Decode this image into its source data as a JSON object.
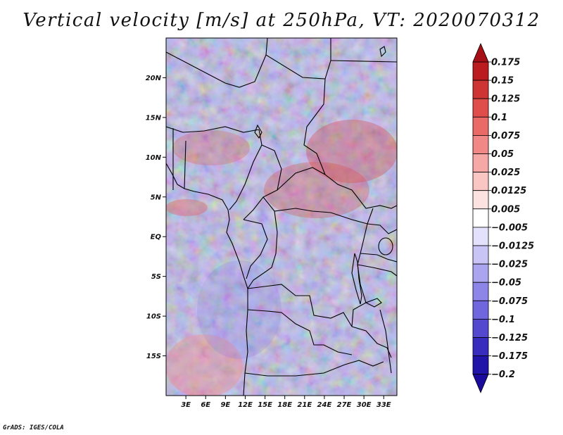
{
  "title": "Vertical velocity [m/s] at 250hPa, VT: 2020070312",
  "footer": "GrADS: IGES/COLA",
  "map": {
    "lon_range": [
      0,
      35
    ],
    "lat_range": [
      -20,
      25
    ],
    "lat_ticks": [
      {
        "value": 20,
        "label": "20N"
      },
      {
        "value": 15,
        "label": "15N"
      },
      {
        "value": 10,
        "label": "10N"
      },
      {
        "value": 5,
        "label": "5N"
      },
      {
        "value": 0,
        "label": "EQ"
      },
      {
        "value": -5,
        "label": "5S"
      },
      {
        "value": -10,
        "label": "10S"
      },
      {
        "value": -15,
        "label": "15S"
      }
    ],
    "lon_ticks": [
      {
        "value": 3,
        "label": "3E"
      },
      {
        "value": 6,
        "label": "6E"
      },
      {
        "value": 9,
        "label": "9E"
      },
      {
        "value": 12,
        "label": "12E"
      },
      {
        "value": 15,
        "label": "15E"
      },
      {
        "value": 18,
        "label": "18E"
      },
      {
        "value": 21,
        "label": "21E"
      },
      {
        "value": 24,
        "label": "24E"
      },
      {
        "value": 27,
        "label": "27E"
      },
      {
        "value": 30,
        "label": "30E"
      },
      {
        "value": 33,
        "label": "33E"
      }
    ]
  },
  "colorbar": {
    "levels": [
      {
        "label": "0.175",
        "color": "#a50f15"
      },
      {
        "label": "0.15",
        "color": "#bb1c20"
      },
      {
        "label": "0.125",
        "color": "#cf3434"
      },
      {
        "label": "0.1",
        "color": "#e04e4c"
      },
      {
        "label": "0.075",
        "color": "#ea6a68"
      },
      {
        "label": "0.05",
        "color": "#f08887"
      },
      {
        "label": "0.025",
        "color": "#f5a8a6"
      },
      {
        "label": "0.0125",
        "color": "#f9c6c4"
      },
      {
        "label": "0.005",
        "color": "#fce2e0"
      },
      {
        "label": "−0.005",
        "color": "#ffffff"
      },
      {
        "label": "−0.0125",
        "color": "#e3e1fb"
      },
      {
        "label": "−0.025",
        "color": "#c8c4f6"
      },
      {
        "label": "−0.05",
        "color": "#aba5f0"
      },
      {
        "label": "−0.075",
        "color": "#8d85e8"
      },
      {
        "label": "−0.1",
        "color": "#7066dd"
      },
      {
        "label": "−0.125",
        "color": "#5448ce"
      },
      {
        "label": "−0.175",
        "color": "#372cbd"
      },
      {
        "label": "−0.2",
        "color": "#1f13a8"
      }
    ],
    "top_color": "#a50f15",
    "bottom_color": "#1a0a9e"
  }
}
